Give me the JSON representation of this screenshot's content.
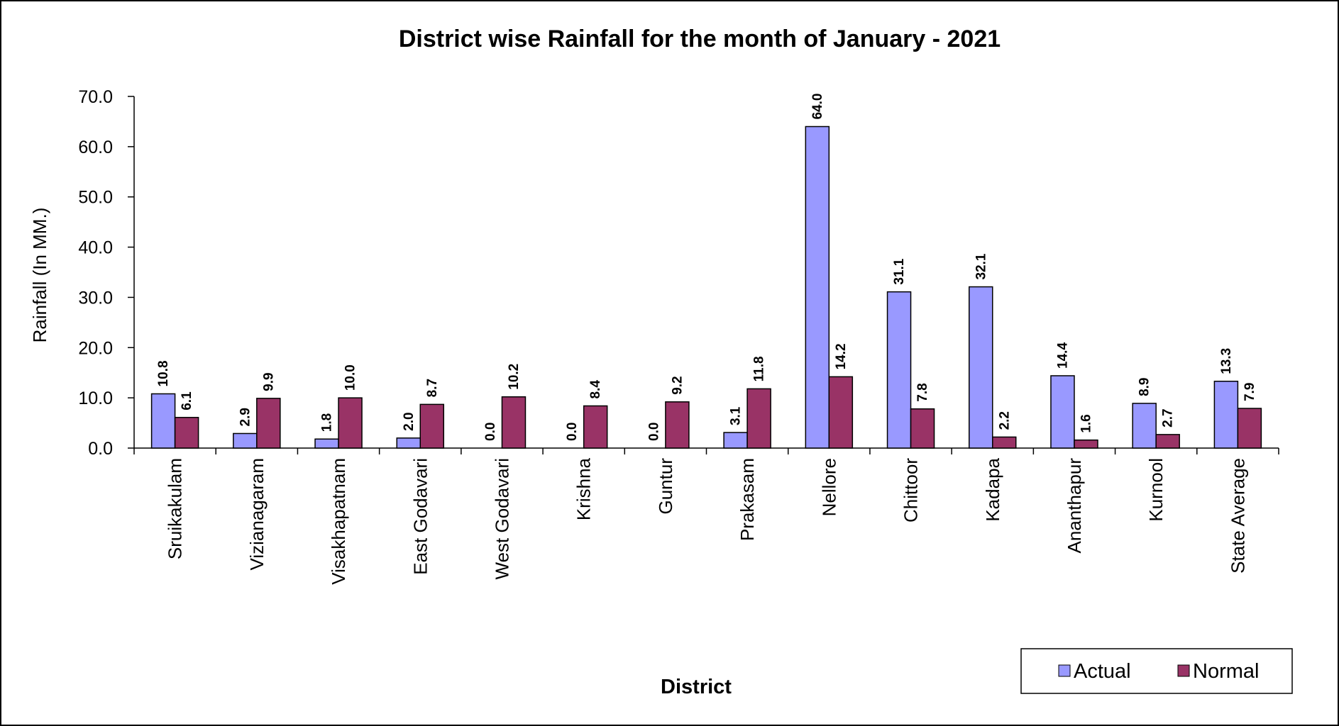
{
  "chart_data": {
    "type": "bar",
    "title": "District wise Rainfall for the month of January - 2021",
    "xlabel": "District",
    "ylabel": "Rainfall (In MM.)",
    "ylim": [
      0,
      70
    ],
    "yticks": [
      "0.0",
      "10.0",
      "20.0",
      "30.0",
      "40.0",
      "50.0",
      "60.0",
      "70.0"
    ],
    "grid": false,
    "legend_position": "bottom-right",
    "categories": [
      "Sruikakulam",
      "Vizianagaram",
      "Visakhapatnam",
      "East Godavari",
      "West Godavari",
      "Krishna",
      "Guntur",
      "Prakasam",
      "Nellore",
      "Chittoor",
      "Kadapa",
      "Ananthapur",
      "Kurnool",
      "State Average"
    ],
    "series": [
      {
        "name": "Actual",
        "color": "#9999ff",
        "values": [
          10.8,
          2.9,
          1.8,
          2.0,
          0.0,
          0.0,
          0.0,
          3.1,
          64.0,
          31.1,
          32.1,
          14.4,
          8.9,
          13.3
        ],
        "labels": [
          "10.8",
          "2.9",
          "1.8",
          "2.0",
          "0.0",
          "0.0",
          "0.0",
          "3.1",
          "64.0",
          "31.1",
          "32.1",
          "14.4",
          "8.9",
          "13.3"
        ]
      },
      {
        "name": "Normal",
        "color": "#993366",
        "values": [
          6.1,
          9.9,
          10.0,
          8.7,
          10.2,
          8.4,
          9.2,
          11.8,
          14.2,
          7.8,
          2.2,
          1.6,
          2.7,
          7.9
        ],
        "labels": [
          "6.1",
          "9.9",
          "10.0",
          "8.7",
          "10.2",
          "8.4",
          "9.2",
          "11.8",
          "14.2",
          "7.8",
          "2.2",
          "1.6",
          "2.7",
          "7.9"
        ]
      }
    ]
  }
}
